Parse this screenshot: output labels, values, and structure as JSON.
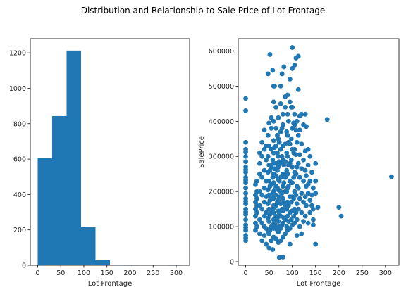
{
  "figure": {
    "title": "Distribution and Relationship to Sale Price of Lot Frontage"
  },
  "chart_data": [
    {
      "type": "bar",
      "subtype": "histogram",
      "color": "#1f77b4",
      "xlabel": "Lot Frontage",
      "ylabel": "",
      "xlim": [
        -16,
        329
      ],
      "ylim": [
        0,
        1280
      ],
      "xticks": [
        0,
        50,
        100,
        150,
        200,
        250,
        300
      ],
      "yticks": [
        0,
        200,
        400,
        600,
        800,
        1000,
        1200
      ],
      "bin_edges": [
        0,
        31.3,
        62.6,
        93.9,
        125.2,
        156.5,
        187.8,
        219.1,
        250.4,
        281.7,
        313
      ],
      "values": [
        605,
        843,
        1213,
        215,
        28,
        3,
        1,
        0,
        0,
        1
      ]
    },
    {
      "type": "scatter",
      "color": "#1f77b4",
      "xlabel": "Lot Frontage",
      "ylabel": "SalePrice",
      "xlim": [
        -16,
        329
      ],
      "ylim": [
        -10000,
        635000
      ],
      "xticks": [
        0,
        50,
        100,
        150,
        200,
        250,
        300
      ],
      "yticks": [
        0,
        100000,
        200000,
        300000,
        400000,
        500000,
        600000
      ],
      "points": [
        [
          0,
          60000
        ],
        [
          0,
          75000
        ],
        [
          0,
          90000
        ],
        [
          0,
          105000
        ],
        [
          0,
          120000
        ],
        [
          0,
          135000
        ],
        [
          0,
          150000
        ],
        [
          0,
          165000
        ],
        [
          0,
          180000
        ],
        [
          0,
          195000
        ],
        [
          0,
          210000
        ],
        [
          0,
          225000
        ],
        [
          0,
          240000
        ],
        [
          0,
          255000
        ],
        [
          0,
          270000
        ],
        [
          0,
          285000
        ],
        [
          0,
          300000
        ],
        [
          0,
          320000
        ],
        [
          0,
          340000
        ],
        [
          0,
          430000
        ],
        [
          0,
          465000
        ],
        [
          0,
          68000
        ],
        [
          0,
          98000
        ],
        [
          0,
          142000
        ],
        [
          0,
          172000
        ],
        [
          0,
          232000
        ],
        [
          0,
          262000
        ],
        [
          0,
          312000
        ],
        [
          21,
          90000
        ],
        [
          21,
          110000
        ],
        [
          21,
          130000
        ],
        [
          21,
          150000
        ],
        [
          21,
          170000
        ],
        [
          21,
          190000
        ],
        [
          21,
          220000
        ],
        [
          24,
          100000
        ],
        [
          24,
          140000
        ],
        [
          24,
          160000
        ],
        [
          24,
          180000
        ],
        [
          24,
          200000
        ],
        [
          24,
          230000
        ],
        [
          30,
          80000
        ],
        [
          30,
          120000
        ],
        [
          30,
          160000
        ],
        [
          30,
          200000
        ],
        [
          30,
          250000
        ],
        [
          30,
          280000
        ],
        [
          30,
          310000
        ],
        [
          35,
          60000
        ],
        [
          35,
          110000
        ],
        [
          35,
          150000
        ],
        [
          35,
          190000
        ],
        [
          35,
          240000
        ],
        [
          35,
          300000
        ],
        [
          35,
          340000
        ],
        [
          40,
          75000
        ],
        [
          40,
          100000
        ],
        [
          40,
          130000
        ],
        [
          40,
          170000
        ],
        [
          40,
          210000
        ],
        [
          40,
          260000
        ],
        [
          40,
          320000
        ],
        [
          40,
          375000
        ],
        [
          44,
          50000
        ],
        [
          44,
          95000
        ],
        [
          44,
          140000
        ],
        [
          44,
          185000
        ],
        [
          44,
          230000
        ],
        [
          44,
          290000
        ],
        [
          44,
          330000
        ],
        [
          48,
          85000
        ],
        [
          48,
          125000
        ],
        [
          48,
          165000
        ],
        [
          48,
          205000
        ],
        [
          48,
          255000
        ],
        [
          48,
          300000
        ],
        [
          48,
          360000
        ],
        [
          48,
          535000
        ],
        [
          50,
          40000
        ],
        [
          50,
          80000
        ],
        [
          50,
          115000
        ],
        [
          50,
          150000
        ],
        [
          50,
          190000
        ],
        [
          50,
          230000
        ],
        [
          50,
          275000
        ],
        [
          50,
          330000
        ],
        [
          50,
          395000
        ],
        [
          52,
          90000
        ],
        [
          52,
          135000
        ],
        [
          52,
          175000
        ],
        [
          52,
          215000
        ],
        [
          52,
          260000
        ],
        [
          52,
          590000
        ],
        [
          55,
          60000
        ],
        [
          55,
          100000
        ],
        [
          55,
          140000
        ],
        [
          55,
          180000
        ],
        [
          55,
          220000
        ],
        [
          55,
          270000
        ],
        [
          55,
          320000
        ],
        [
          55,
          380000
        ],
        [
          55,
          410000
        ],
        [
          58,
          35000
        ],
        [
          58,
          105000
        ],
        [
          58,
          150000
        ],
        [
          58,
          195000
        ],
        [
          58,
          240000
        ],
        [
          58,
          290000
        ],
        [
          58,
          545000
        ],
        [
          60,
          70000
        ],
        [
          60,
          95000
        ],
        [
          60,
          120000
        ],
        [
          60,
          140000
        ],
        [
          60,
          160000
        ],
        [
          60,
          180000
        ],
        [
          60,
          200000
        ],
        [
          60,
          225000
        ],
        [
          60,
          250000
        ],
        [
          60,
          280000
        ],
        [
          60,
          310000
        ],
        [
          60,
          345000
        ],
        [
          60,
          400000
        ],
        [
          60,
          455000
        ],
        [
          60,
          500000
        ],
        [
          62,
          110000
        ],
        [
          62,
          155000
        ],
        [
          62,
          205000
        ],
        [
          62,
          265000
        ],
        [
          62,
          325000
        ],
        [
          62,
          500000
        ],
        [
          65,
          65000
        ],
        [
          65,
          100000
        ],
        [
          65,
          130000
        ],
        [
          65,
          160000
        ],
        [
          65,
          190000
        ],
        [
          65,
          215000
        ],
        [
          65,
          245000
        ],
        [
          65,
          280000
        ],
        [
          65,
          330000
        ],
        [
          65,
          380000
        ],
        [
          65,
          440000
        ],
        [
          68,
          90000
        ],
        [
          68,
          125000
        ],
        [
          68,
          170000
        ],
        [
          68,
          210000
        ],
        [
          68,
          260000
        ],
        [
          68,
          310000
        ],
        [
          68,
          360000
        ],
        [
          70,
          55000
        ],
        [
          70,
          85000
        ],
        [
          70,
          115000
        ],
        [
          70,
          145000
        ],
        [
          70,
          175000
        ],
        [
          70,
          205000
        ],
        [
          70,
          235000
        ],
        [
          70,
          270000
        ],
        [
          70,
          300000
        ],
        [
          70,
          350000
        ],
        [
          70,
          410000
        ],
        [
          72,
          100000
        ],
        [
          72,
          140000
        ],
        [
          72,
          185000
        ],
        [
          72,
          230000
        ],
        [
          72,
          285000
        ],
        [
          72,
          340000
        ],
        [
          72,
          12000
        ],
        [
          75,
          60000
        ],
        [
          75,
          95000
        ],
        [
          75,
          130000
        ],
        [
          75,
          165000
        ],
        [
          75,
          200000
        ],
        [
          75,
          240000
        ],
        [
          75,
          280000
        ],
        [
          75,
          320000
        ],
        [
          75,
          370000
        ],
        [
          75,
          450000
        ],
        [
          75,
          500000
        ],
        [
          78,
          105000
        ],
        [
          78,
          150000
        ],
        [
          78,
          195000
        ],
        [
          78,
          245000
        ],
        [
          78,
          300000
        ],
        [
          78,
          380000
        ],
        [
          78,
          535000
        ],
        [
          80,
          70000
        ],
        [
          80,
          110000
        ],
        [
          80,
          145000
        ],
        [
          80,
          180000
        ],
        [
          80,
          215000
        ],
        [
          80,
          250000
        ],
        [
          80,
          290000
        ],
        [
          80,
          330000
        ],
        [
          80,
          390000
        ],
        [
          80,
          420000
        ],
        [
          80,
          13000
        ],
        [
          82,
          125000
        ],
        [
          82,
          170000
        ],
        [
          82,
          225000
        ],
        [
          82,
          275000
        ],
        [
          82,
          555000
        ],
        [
          85,
          80000
        ],
        [
          85,
          120000
        ],
        [
          85,
          160000
        ],
        [
          85,
          200000
        ],
        [
          85,
          240000
        ],
        [
          85,
          285000
        ],
        [
          85,
          335000
        ],
        [
          85,
          440000
        ],
        [
          85,
          470000
        ],
        [
          88,
          100000
        ],
        [
          88,
          150000
        ],
        [
          88,
          200000
        ],
        [
          88,
          260000
        ],
        [
          88,
          310000
        ],
        [
          88,
          370000
        ],
        [
          90,
          90000
        ],
        [
          90,
          130000
        ],
        [
          90,
          170000
        ],
        [
          90,
          210000
        ],
        [
          90,
          250000
        ],
        [
          90,
          300000
        ],
        [
          90,
          360000
        ],
        [
          90,
          420000
        ],
        [
          90,
          475000
        ],
        [
          92,
          115000
        ],
        [
          92,
          160000
        ],
        [
          92,
          215000
        ],
        [
          92,
          275000
        ],
        [
          92,
          340000
        ],
        [
          92,
          400000
        ],
        [
          95,
          95000
        ],
        [
          95,
          140000
        ],
        [
          95,
          185000
        ],
        [
          95,
          230000
        ],
        [
          95,
          280000
        ],
        [
          95,
          335000
        ],
        [
          95,
          455000
        ],
        [
          95,
          520000
        ],
        [
          95,
          50000
        ],
        [
          98,
          120000
        ],
        [
          98,
          170000
        ],
        [
          98,
          225000
        ],
        [
          98,
          290000
        ],
        [
          98,
          350000
        ],
        [
          98,
          440000
        ],
        [
          100,
          105000
        ],
        [
          100,
          145000
        ],
        [
          100,
          185000
        ],
        [
          100,
          225000
        ],
        [
          100,
          270000
        ],
        [
          100,
          320000
        ],
        [
          100,
          380000
        ],
        [
          100,
          440000
        ],
        [
          100,
          610000
        ],
        [
          100,
          550000
        ],
        [
          103,
          130000
        ],
        [
          103,
          180000
        ],
        [
          103,
          240000
        ],
        [
          103,
          310000
        ],
        [
          103,
          395000
        ],
        [
          105,
          110000
        ],
        [
          105,
          150000
        ],
        [
          105,
          200000
        ],
        [
          105,
          255000
        ],
        [
          105,
          320000
        ],
        [
          105,
          390000
        ],
        [
          105,
          560000
        ],
        [
          105,
          420000
        ],
        [
          108,
          140000
        ],
        [
          108,
          190000
        ],
        [
          108,
          250000
        ],
        [
          108,
          305000
        ],
        [
          108,
          375000
        ],
        [
          108,
          580000
        ],
        [
          110,
          120000
        ],
        [
          110,
          165000
        ],
        [
          110,
          215000
        ],
        [
          110,
          270000
        ],
        [
          110,
          340000
        ],
        [
          110,
          400000
        ],
        [
          110,
          75000
        ],
        [
          113,
          150000
        ],
        [
          113,
          210000
        ],
        [
          113,
          280000
        ],
        [
          113,
          360000
        ],
        [
          113,
          585000
        ],
        [
          113,
          490000
        ],
        [
          116,
          100000
        ],
        [
          116,
          180000
        ],
        [
          116,
          240000
        ],
        [
          116,
          305000
        ],
        [
          116,
          375000
        ],
        [
          116,
          415000
        ],
        [
          120,
          80000
        ],
        [
          120,
          140000
        ],
        [
          120,
          195000
        ],
        [
          120,
          265000
        ],
        [
          120,
          335000
        ],
        [
          120,
          420000
        ],
        [
          124,
          115000
        ],
        [
          124,
          170000
        ],
        [
          124,
          230000
        ],
        [
          124,
          290000
        ],
        [
          124,
          390000
        ],
        [
          128,
          130000
        ],
        [
          128,
          185000
        ],
        [
          128,
          260000
        ],
        [
          128,
          315000
        ],
        [
          128,
          420000
        ],
        [
          130,
          160000
        ],
        [
          130,
          215000
        ],
        [
          130,
          245000
        ],
        [
          130,
          385000
        ],
        [
          134,
          110000
        ],
        [
          134,
          195000
        ],
        [
          134,
          220000
        ],
        [
          134,
          275000
        ],
        [
          134,
          320000
        ],
        [
          138,
          140000
        ],
        [
          138,
          175000
        ],
        [
          138,
          230000
        ],
        [
          138,
          300000
        ],
        [
          142,
          160000
        ],
        [
          142,
          190000
        ],
        [
          142,
          255000
        ],
        [
          145,
          105000
        ],
        [
          145,
          120000
        ],
        [
          145,
          150000
        ],
        [
          145,
          210000
        ],
        [
          150,
          50000
        ],
        [
          150,
          195000
        ],
        [
          150,
          230000
        ],
        [
          150,
          280000
        ],
        [
          155,
          155000
        ],
        [
          175,
          405000
        ],
        [
          200,
          155000
        ],
        [
          205,
          130000
        ],
        [
          313,
          242000
        ]
      ]
    }
  ]
}
